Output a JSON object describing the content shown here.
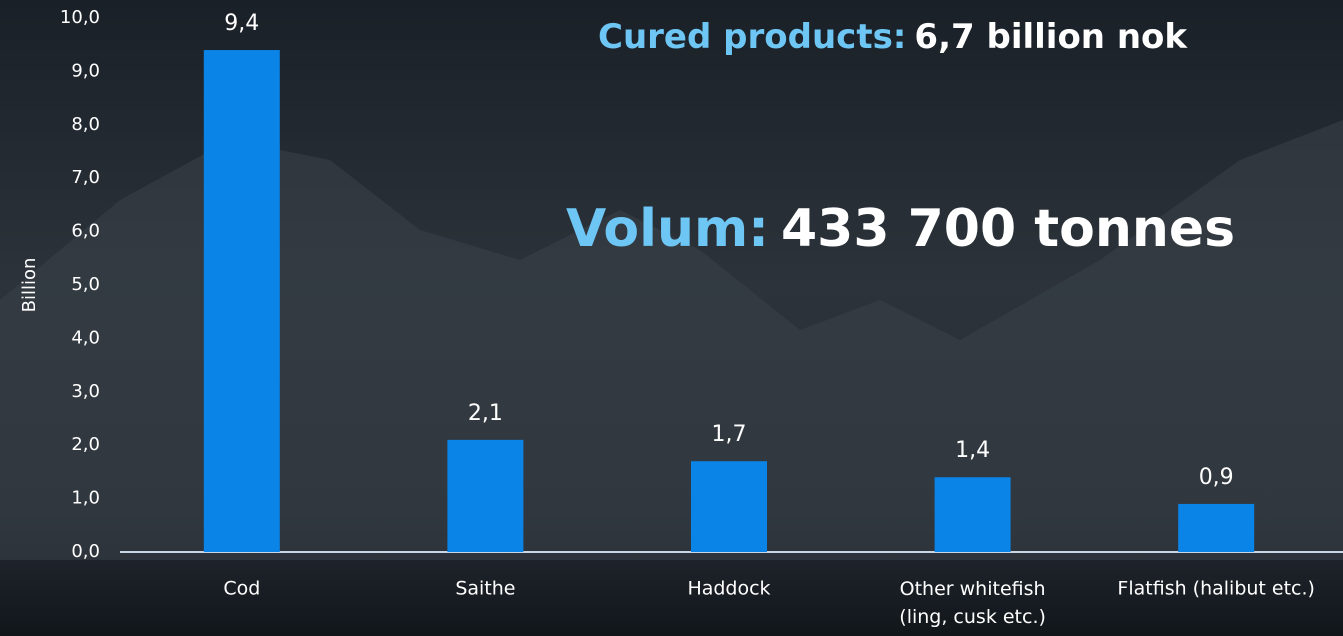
{
  "chart_data": {
    "type": "bar",
    "y_label": "Billion",
    "annotations": [
      {
        "lead": "Cured products:",
        "text": "6,7 billion nok"
      },
      {
        "lead": "Volum:",
        "text": "433 700 tonnes"
      }
    ],
    "categories": [
      "Cod",
      "Saithe",
      "Haddock",
      "Other whitefish\n(ling, cusk etc.)",
      "Flatfish (halibut etc.)"
    ],
    "values": [
      9.4,
      2.1,
      1.7,
      1.4,
      0.9
    ],
    "value_labels": [
      "9,4",
      "2,1",
      "1,7",
      "1,4",
      "0,9"
    ],
    "color": "#0a84e6",
    "ylim": [
      0,
      10
    ],
    "yticks": [
      {
        "value": 0,
        "label": "0,0"
      },
      {
        "value": 1,
        "label": "1,0"
      },
      {
        "value": 2,
        "label": "2,0"
      },
      {
        "value": 3,
        "label": "3,0"
      },
      {
        "value": 4,
        "label": "4,0"
      },
      {
        "value": 5,
        "label": "5,0"
      },
      {
        "value": 6,
        "label": "6,0"
      },
      {
        "value": 7,
        "label": "7,0"
      },
      {
        "value": 8,
        "label": "8,0"
      },
      {
        "value": 9,
        "label": "9,0"
      },
      {
        "value": 10,
        "label": "10,0"
      }
    ]
  }
}
